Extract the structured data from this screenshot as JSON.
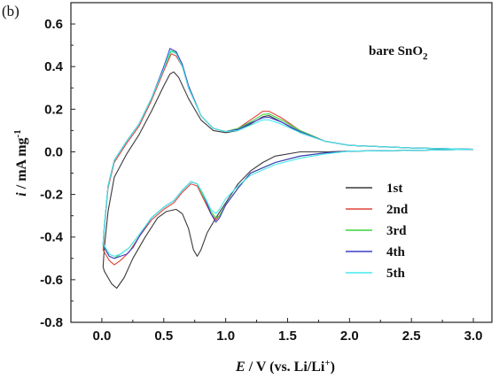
{
  "chart_data": {
    "type": "line",
    "panel_label": "(b)",
    "annotation": {
      "text": "bare SnO",
      "subscript": "2"
    },
    "xlabel": {
      "italic": "E",
      "text": " / V (vs. Li/Li",
      "sup": "+",
      "end": ")"
    },
    "ylabel": {
      "italic": "i",
      "text": " / mA mg",
      "sup": "-1"
    },
    "xlim": [
      -0.25,
      3.15
    ],
    "ylim": [
      -0.8,
      0.7
    ],
    "x_ticks": [
      "0.0",
      "0.5",
      "1.0",
      "1.5",
      "2.0",
      "2.5",
      "3.0"
    ],
    "y_ticks": [
      "0.6",
      "0.4",
      "0.2",
      "0.0",
      "-0.2",
      "-0.4",
      "-0.6",
      "-0.8"
    ],
    "grid": false,
    "legend_position": "bottom-right",
    "series": [
      {
        "name": "1st",
        "color": "#3a3a3a",
        "points": [
          [
            3.0,
            0.012
          ],
          [
            2.5,
            0.007
          ],
          [
            2.0,
            0.003
          ],
          [
            1.8,
            0.0
          ],
          [
            1.6,
            0.0
          ],
          [
            1.4,
            -0.02
          ],
          [
            1.3,
            -0.05
          ],
          [
            1.2,
            -0.09
          ],
          [
            1.1,
            -0.15
          ],
          [
            1.0,
            -0.24
          ],
          [
            0.92,
            -0.31
          ],
          [
            0.85,
            -0.38
          ],
          [
            0.8,
            -0.46
          ],
          [
            0.77,
            -0.49
          ],
          [
            0.74,
            -0.46
          ],
          [
            0.7,
            -0.36
          ],
          [
            0.65,
            -0.29
          ],
          [
            0.6,
            -0.27
          ],
          [
            0.52,
            -0.28
          ],
          [
            0.45,
            -0.31
          ],
          [
            0.35,
            -0.4
          ],
          [
            0.25,
            -0.5
          ],
          [
            0.18,
            -0.59
          ],
          [
            0.12,
            -0.64
          ],
          [
            0.08,
            -0.62
          ],
          [
            0.05,
            -0.59
          ],
          [
            0.02,
            -0.56
          ],
          [
            0.01,
            -0.54
          ],
          [
            0.02,
            -0.45
          ],
          [
            0.05,
            -0.28
          ],
          [
            0.1,
            -0.12
          ],
          [
            0.2,
            -0.01
          ],
          [
            0.3,
            0.08
          ],
          [
            0.4,
            0.19
          ],
          [
            0.5,
            0.31
          ],
          [
            0.55,
            0.365
          ],
          [
            0.58,
            0.375
          ],
          [
            0.62,
            0.35
          ],
          [
            0.7,
            0.25
          ],
          [
            0.8,
            0.15
          ],
          [
            0.9,
            0.1
          ],
          [
            1.0,
            0.09
          ],
          [
            1.1,
            0.1
          ],
          [
            1.2,
            0.13
          ],
          [
            1.3,
            0.165
          ],
          [
            1.35,
            0.17
          ],
          [
            1.45,
            0.14
          ],
          [
            1.6,
            0.09
          ],
          [
            1.8,
            0.05
          ],
          [
            2.0,
            0.03
          ],
          [
            2.5,
            0.018
          ],
          [
            3.0,
            0.012
          ]
        ]
      },
      {
        "name": "2nd",
        "color": "#e0443c",
        "points": [
          [
            3.0,
            0.012
          ],
          [
            2.5,
            0.007
          ],
          [
            2.0,
            0.003
          ],
          [
            1.8,
            -0.005
          ],
          [
            1.6,
            -0.02
          ],
          [
            1.4,
            -0.05
          ],
          [
            1.2,
            -0.1
          ],
          [
            1.1,
            -0.17
          ],
          [
            1.0,
            -0.25
          ],
          [
            0.95,
            -0.3
          ],
          [
            0.92,
            -0.32
          ],
          [
            0.88,
            -0.29
          ],
          [
            0.82,
            -0.22
          ],
          [
            0.77,
            -0.16
          ],
          [
            0.72,
            -0.15
          ],
          [
            0.65,
            -0.19
          ],
          [
            0.58,
            -0.24
          ],
          [
            0.5,
            -0.27
          ],
          [
            0.4,
            -0.32
          ],
          [
            0.3,
            -0.4
          ],
          [
            0.22,
            -0.47
          ],
          [
            0.15,
            -0.51
          ],
          [
            0.1,
            -0.53
          ],
          [
            0.06,
            -0.51
          ],
          [
            0.03,
            -0.48
          ],
          [
            0.01,
            -0.46
          ],
          [
            0.02,
            -0.36
          ],
          [
            0.05,
            -0.17
          ],
          [
            0.1,
            -0.05
          ],
          [
            0.2,
            0.04
          ],
          [
            0.3,
            0.12
          ],
          [
            0.4,
            0.24
          ],
          [
            0.5,
            0.38
          ],
          [
            0.56,
            0.46
          ],
          [
            0.6,
            0.45
          ],
          [
            0.65,
            0.4
          ],
          [
            0.7,
            0.3
          ],
          [
            0.8,
            0.17
          ],
          [
            0.9,
            0.11
          ],
          [
            1.0,
            0.095
          ],
          [
            1.1,
            0.11
          ],
          [
            1.2,
            0.15
          ],
          [
            1.3,
            0.19
          ],
          [
            1.35,
            0.19
          ],
          [
            1.45,
            0.16
          ],
          [
            1.6,
            0.1
          ],
          [
            1.8,
            0.05
          ],
          [
            2.0,
            0.03
          ],
          [
            2.5,
            0.018
          ],
          [
            3.0,
            0.012
          ]
        ]
      },
      {
        "name": "3rd",
        "color": "#3fd43f",
        "points": [
          [
            3.0,
            0.012
          ],
          [
            2.5,
            0.007
          ],
          [
            2.0,
            0.003
          ],
          [
            1.8,
            -0.005
          ],
          [
            1.6,
            -0.02
          ],
          [
            1.4,
            -0.05
          ],
          [
            1.2,
            -0.1
          ],
          [
            1.1,
            -0.17
          ],
          [
            1.0,
            -0.25
          ],
          [
            0.95,
            -0.3
          ],
          [
            0.92,
            -0.31
          ],
          [
            0.88,
            -0.28
          ],
          [
            0.82,
            -0.21
          ],
          [
            0.77,
            -0.15
          ],
          [
            0.72,
            -0.14
          ],
          [
            0.65,
            -0.18
          ],
          [
            0.58,
            -0.23
          ],
          [
            0.5,
            -0.26
          ],
          [
            0.4,
            -0.31
          ],
          [
            0.3,
            -0.39
          ],
          [
            0.22,
            -0.45
          ],
          [
            0.15,
            -0.48
          ],
          [
            0.1,
            -0.5
          ],
          [
            0.06,
            -0.49
          ],
          [
            0.03,
            -0.46
          ],
          [
            0.01,
            -0.44
          ],
          [
            0.02,
            -0.35
          ],
          [
            0.05,
            -0.16
          ],
          [
            0.1,
            -0.04
          ],
          [
            0.2,
            0.05
          ],
          [
            0.3,
            0.13
          ],
          [
            0.4,
            0.25
          ],
          [
            0.5,
            0.39
          ],
          [
            0.56,
            0.475
          ],
          [
            0.6,
            0.465
          ],
          [
            0.65,
            0.41
          ],
          [
            0.7,
            0.31
          ],
          [
            0.8,
            0.17
          ],
          [
            0.9,
            0.11
          ],
          [
            1.0,
            0.095
          ],
          [
            1.1,
            0.11
          ],
          [
            1.2,
            0.14
          ],
          [
            1.3,
            0.175
          ],
          [
            1.35,
            0.178
          ],
          [
            1.45,
            0.15
          ],
          [
            1.6,
            0.1
          ],
          [
            1.8,
            0.05
          ],
          [
            2.0,
            0.03
          ],
          [
            2.5,
            0.018
          ],
          [
            3.0,
            0.012
          ]
        ]
      },
      {
        "name": "4th",
        "color": "#3e3ec8",
        "points": [
          [
            3.0,
            0.012
          ],
          [
            2.5,
            0.007
          ],
          [
            2.0,
            0.003
          ],
          [
            1.8,
            -0.005
          ],
          [
            1.6,
            -0.02
          ],
          [
            1.4,
            -0.05
          ],
          [
            1.2,
            -0.1
          ],
          [
            1.1,
            -0.17
          ],
          [
            1.0,
            -0.25
          ],
          [
            0.95,
            -0.31
          ],
          [
            0.92,
            -0.33
          ],
          [
            0.88,
            -0.29
          ],
          [
            0.82,
            -0.2
          ],
          [
            0.77,
            -0.15
          ],
          [
            0.72,
            -0.14
          ],
          [
            0.65,
            -0.18
          ],
          [
            0.58,
            -0.23
          ],
          [
            0.5,
            -0.26
          ],
          [
            0.4,
            -0.31
          ],
          [
            0.32,
            -0.38
          ],
          [
            0.25,
            -0.45
          ],
          [
            0.2,
            -0.48
          ],
          [
            0.15,
            -0.49
          ],
          [
            0.1,
            -0.5
          ],
          [
            0.06,
            -0.49
          ],
          [
            0.03,
            -0.46
          ],
          [
            0.01,
            -0.43
          ],
          [
            0.02,
            -0.35
          ],
          [
            0.05,
            -0.16
          ],
          [
            0.1,
            -0.04
          ],
          [
            0.2,
            0.05
          ],
          [
            0.3,
            0.13
          ],
          [
            0.4,
            0.25
          ],
          [
            0.5,
            0.4
          ],
          [
            0.55,
            0.485
          ],
          [
            0.6,
            0.47
          ],
          [
            0.65,
            0.41
          ],
          [
            0.7,
            0.31
          ],
          [
            0.8,
            0.17
          ],
          [
            0.9,
            0.11
          ],
          [
            1.0,
            0.095
          ],
          [
            1.1,
            0.105
          ],
          [
            1.2,
            0.135
          ],
          [
            1.3,
            0.16
          ],
          [
            1.35,
            0.162
          ],
          [
            1.45,
            0.14
          ],
          [
            1.6,
            0.095
          ],
          [
            1.8,
            0.05
          ],
          [
            2.0,
            0.03
          ],
          [
            2.5,
            0.018
          ],
          [
            3.0,
            0.012
          ]
        ]
      },
      {
        "name": "5th",
        "color": "#47e8ee",
        "points": [
          [
            3.0,
            0.012
          ],
          [
            2.5,
            0.007
          ],
          [
            2.0,
            0.003
          ],
          [
            1.8,
            -0.01
          ],
          [
            1.6,
            -0.03
          ],
          [
            1.4,
            -0.06
          ],
          [
            1.2,
            -0.11
          ],
          [
            1.1,
            -0.16
          ],
          [
            1.0,
            -0.22
          ],
          [
            0.95,
            -0.27
          ],
          [
            0.92,
            -0.29
          ],
          [
            0.88,
            -0.27
          ],
          [
            0.82,
            -0.2
          ],
          [
            0.77,
            -0.15
          ],
          [
            0.72,
            -0.14
          ],
          [
            0.65,
            -0.18
          ],
          [
            0.58,
            -0.23
          ],
          [
            0.5,
            -0.26
          ],
          [
            0.4,
            -0.31
          ],
          [
            0.3,
            -0.39
          ],
          [
            0.22,
            -0.45
          ],
          [
            0.15,
            -0.48
          ],
          [
            0.1,
            -0.49
          ],
          [
            0.06,
            -0.48
          ],
          [
            0.03,
            -0.45
          ],
          [
            0.01,
            -0.43
          ],
          [
            0.02,
            -0.35
          ],
          [
            0.05,
            -0.16
          ],
          [
            0.1,
            -0.04
          ],
          [
            0.2,
            0.05
          ],
          [
            0.3,
            0.13
          ],
          [
            0.4,
            0.25
          ],
          [
            0.5,
            0.39
          ],
          [
            0.55,
            0.475
          ],
          [
            0.6,
            0.46
          ],
          [
            0.65,
            0.4
          ],
          [
            0.7,
            0.3
          ],
          [
            0.8,
            0.17
          ],
          [
            0.9,
            0.11
          ],
          [
            1.0,
            0.095
          ],
          [
            1.1,
            0.1
          ],
          [
            1.2,
            0.125
          ],
          [
            1.3,
            0.15
          ],
          [
            1.35,
            0.15
          ],
          [
            1.45,
            0.13
          ],
          [
            1.6,
            0.09
          ],
          [
            1.8,
            0.05
          ],
          [
            2.0,
            0.03
          ],
          [
            2.5,
            0.018
          ],
          [
            3.0,
            0.012
          ]
        ]
      }
    ]
  }
}
